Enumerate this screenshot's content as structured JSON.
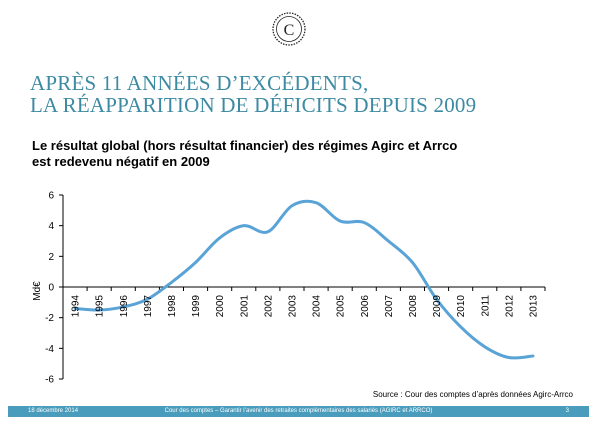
{
  "slide": {
    "title_line1": "APRÈS 11 ANNÉES D’EXCÉDENTS,",
    "title_line2": "LA RÉAPPARITION DE DÉFICITS DEPUIS 2009",
    "subtitle_line1": "Le résultat global (hors résultat financier) des régimes Agirc et Arrco",
    "subtitle_line2": "est redevenu négatif en 2009",
    "source": "Source : Cour des comptes d’après données Agirc-Arrco",
    "footer_date": "18 décembre 2014",
    "footer_center": "Cour des comptes – Garantir l’avenir des retraites complémentaires des salariés (AGIRC et ARRCO)",
    "footer_page": "3"
  },
  "colors": {
    "accent": "#4a9cbc",
    "title": "#3d8aa3",
    "line": "#5aa3d6"
  },
  "chart_data": {
    "type": "line",
    "title": "",
    "xlabel": "",
    "ylabel": "Md€",
    "ylim": [
      -6,
      6
    ],
    "yticks": [
      -6,
      -4,
      -2,
      0,
      2,
      4,
      6
    ],
    "ytick_labels": [
      "-6",
      "-4",
      "-2",
      "0",
      "2",
      "4",
      "6"
    ],
    "categories": [
      "1994",
      "1995",
      "1996",
      "1997",
      "1998",
      "1999",
      "2000",
      "2001",
      "2002",
      "2003",
      "2004",
      "2005",
      "2006",
      "2007",
      "2008",
      "2009",
      "2010",
      "2011",
      "2012",
      "2013"
    ],
    "series": [
      {
        "values": [
          -1.4,
          -1.5,
          -1.3,
          -0.8,
          0.3,
          1.6,
          3.2,
          4.0,
          3.6,
          5.3,
          5.5,
          4.3,
          4.2,
          3.0,
          1.6,
          -0.8,
          -2.6,
          -3.9,
          -4.6,
          -4.5
        ]
      }
    ],
    "grid": false,
    "legend": "none"
  }
}
